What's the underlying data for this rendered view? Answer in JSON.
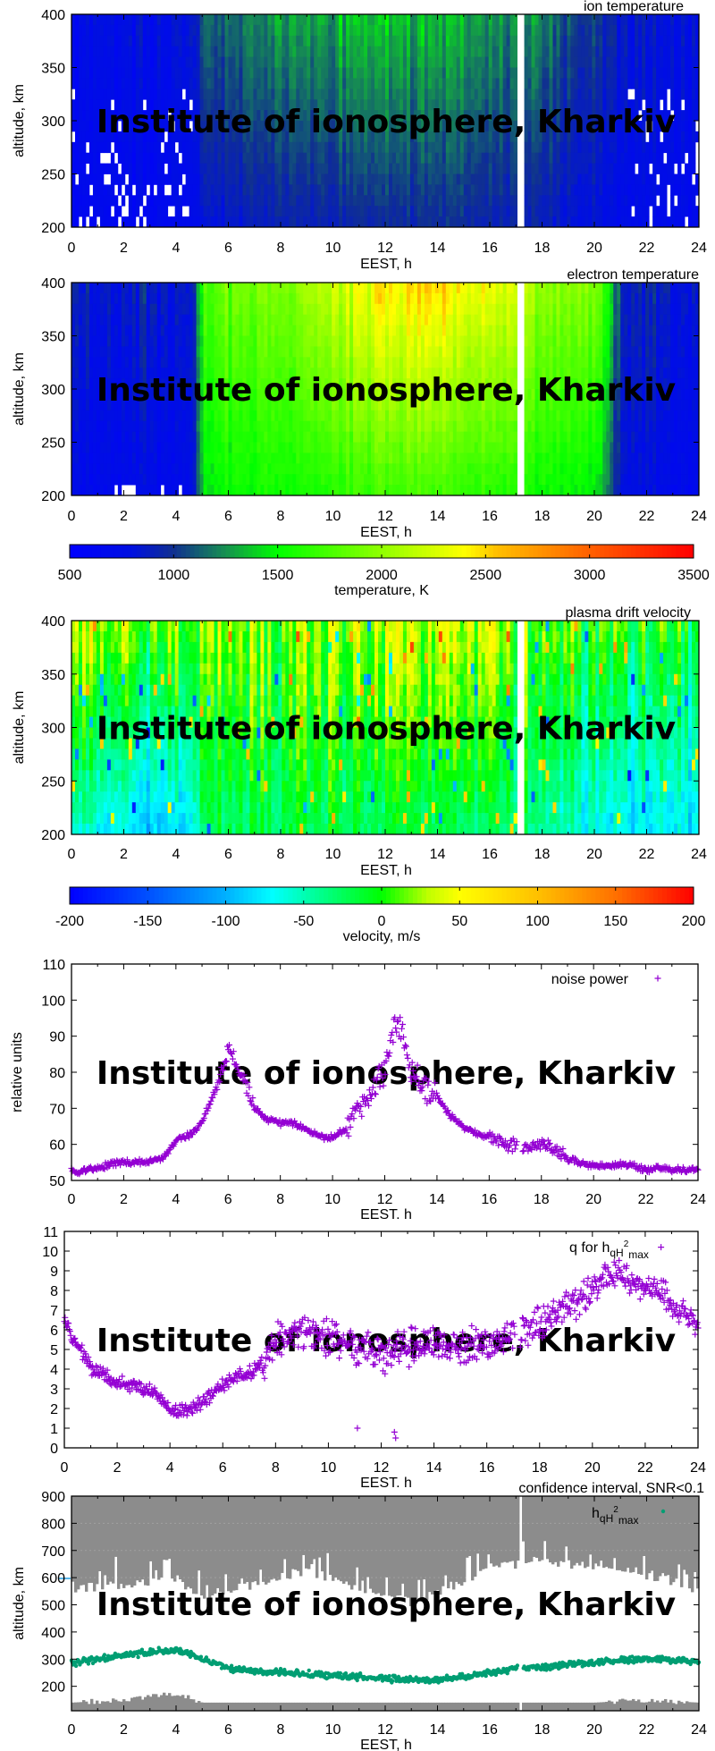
{
  "watermark": "Institute of ionosphere, Kharkiv",
  "chart_data": [
    {
      "type": "heatmap",
      "title": "ion temperature",
      "xlabel": "EEST, h",
      "ylabel": "altitude, km",
      "xlim": [
        0,
        24
      ],
      "ylim": [
        200,
        400
      ],
      "xticks": [
        "0",
        "2",
        "4",
        "6",
        "8",
        "10",
        "12",
        "14",
        "16",
        "18",
        "20",
        "22",
        "24"
      ],
      "yticks": [
        "200",
        "250",
        "300",
        "350",
        "400"
      ],
      "zlim": [
        500,
        3500
      ],
      "missing_interval_h": [
        17.08,
        17.27
      ],
      "profile": {
        "hours": [
          0,
          2,
          4,
          4.6,
          5,
          6,
          8,
          10,
          12,
          14,
          16,
          18,
          20,
          20.5,
          21,
          24
        ],
        "at_200km": [
          650,
          650,
          680,
          720,
          780,
          850,
          900,
          930,
          960,
          960,
          930,
          880,
          800,
          760,
          740,
          680
        ],
        "at_400km": [
          750,
          760,
          800,
          900,
          1050,
          1150,
          1280,
          1320,
          1400,
          1320,
          1280,
          1200,
          1000,
          950,
          880,
          780
        ]
      }
    },
    {
      "type": "heatmap",
      "title": "electron temperature",
      "xlabel": "EEST, h",
      "ylabel": "altitude, km",
      "xlim": [
        0,
        24
      ],
      "ylim": [
        200,
        400
      ],
      "xticks": [
        "0",
        "2",
        "4",
        "6",
        "8",
        "10",
        "12",
        "14",
        "16",
        "18",
        "20",
        "22",
        "24"
      ],
      "yticks": [
        "200",
        "250",
        "300",
        "350",
        "400"
      ],
      "zlim": [
        500,
        3500
      ],
      "missing_interval_h": [
        17.08,
        17.27
      ],
      "profile": {
        "hours": [
          0,
          2,
          4,
          4.6,
          5,
          6,
          8,
          10,
          12,
          14,
          16,
          18,
          20,
          20.5,
          21,
          24
        ],
        "at_200km": [
          700,
          700,
          720,
          760,
          1400,
          1500,
          1550,
          1600,
          1700,
          1700,
          1600,
          1550,
          1450,
          1200,
          800,
          700
        ],
        "at_400km": [
          850,
          850,
          880,
          950,
          1700,
          1850,
          1950,
          2150,
          2450,
          2450,
          2300,
          2050,
          1900,
          1600,
          950,
          880
        ]
      },
      "colorbar": {
        "label": "temperature, K",
        "range": [
          500,
          3500
        ],
        "ticks": [
          "500",
          "1000",
          "1500",
          "2000",
          "2500",
          "3000",
          "3500"
        ],
        "palette": [
          [
            500,
            "#0000ff"
          ],
          [
            800,
            "#0010e0"
          ],
          [
            1000,
            "#103090"
          ],
          [
            1250,
            "#169050"
          ],
          [
            1500,
            "#00ff00"
          ],
          [
            2000,
            "#90ff00"
          ],
          [
            2400,
            "#ffff00"
          ],
          [
            2550,
            "#ffc000"
          ],
          [
            3000,
            "#ff6000"
          ],
          [
            3500,
            "#ff0000"
          ]
        ]
      }
    },
    {
      "type": "heatmap",
      "title": "plasma drift velocity",
      "xlabel": "EEST, h",
      "ylabel": "altitude, km",
      "xlim": [
        0,
        24
      ],
      "ylim": [
        200,
        400
      ],
      "xticks": [
        "0",
        "2",
        "4",
        "6",
        "8",
        "10",
        "12",
        "14",
        "16",
        "18",
        "20",
        "22",
        "24"
      ],
      "yticks": [
        "200",
        "250",
        "300",
        "350",
        "400"
      ],
      "zlim": [
        -200,
        200
      ],
      "missing_interval_h": [
        17.08,
        17.27
      ],
      "profile": {
        "hours": [
          0,
          2,
          4,
          4.6,
          5,
          6,
          8,
          10,
          12,
          14,
          16,
          18,
          20,
          20.5,
          21,
          24
        ],
        "at_200km": [
          -60,
          -80,
          -90,
          -70,
          -40,
          -30,
          -20,
          -20,
          -20,
          -20,
          -30,
          -40,
          -70,
          -80,
          -80,
          -80
        ],
        "at_400km": [
          20,
          20,
          10,
          10,
          10,
          10,
          20,
          30,
          40,
          40,
          30,
          10,
          0,
          -10,
          -10,
          -10
        ]
      },
      "colorbar": {
        "label": "velocity, m/s",
        "range": [
          -200,
          200
        ],
        "ticks": [
          "-200",
          "-150",
          "-100",
          "-50",
          "0",
          "50",
          "100",
          "150",
          "200"
        ],
        "palette": [
          [
            -200,
            "#0000ff"
          ],
          [
            -150,
            "#0050ff"
          ],
          [
            -100,
            "#00b0ff"
          ],
          [
            -70,
            "#00ffff"
          ],
          [
            -40,
            "#00ff90"
          ],
          [
            0,
            "#00ff00"
          ],
          [
            30,
            "#c0ff00"
          ],
          [
            50,
            "#ffff00"
          ],
          [
            100,
            "#ffc000"
          ],
          [
            150,
            "#ff7000"
          ],
          [
            200,
            "#ff0000"
          ]
        ]
      }
    },
    {
      "type": "scatter",
      "legend": "noise power",
      "xlabel": "EEST. h",
      "ylabel": "relative units",
      "xlim": [
        0,
        24
      ],
      "ylim": [
        50,
        110
      ],
      "xticks": [
        "0",
        "2",
        "4",
        "6",
        "8",
        "10",
        "12",
        "14",
        "16",
        "18",
        "20",
        "22",
        "24"
      ],
      "yticks": [
        "50",
        "60",
        "70",
        "80",
        "90",
        "100",
        "110"
      ],
      "marker_color": "#9400d3",
      "series": [
        {
          "name": "noise power",
          "x": [
            0,
            0.5,
            1,
            1.5,
            2,
            2.5,
            3,
            3.5,
            4,
            4.5,
            5,
            5.5,
            5.75,
            6,
            6.5,
            7,
            7.5,
            8,
            8.5,
            9,
            9.5,
            10,
            10.5,
            11,
            11.5,
            12,
            12.25,
            12.5,
            12.75,
            13,
            13.5,
            14,
            14.5,
            15,
            15.5,
            16,
            16.5,
            17,
            17.5,
            18,
            18.5,
            19,
            19.5,
            20,
            20.5,
            21,
            21.5,
            22,
            22.5,
            23,
            23.5,
            24
          ],
          "y": [
            52.5,
            52.5,
            53.5,
            54.5,
            55,
            55,
            55.5,
            56,
            61,
            62.5,
            66,
            75,
            80,
            86,
            80,
            70,
            67,
            66,
            66,
            64,
            62,
            62,
            64,
            70,
            75,
            80,
            90,
            95,
            88,
            80,
            76,
            73,
            68,
            65,
            63,
            62,
            60,
            60,
            59,
            60,
            59,
            56,
            55,
            54,
            54,
            54.5,
            54,
            53,
            53.5,
            53,
            53,
            53
          ]
        }
      ]
    },
    {
      "type": "scatter",
      "legend": {
        "text": "q for h",
        "sub": "qH",
        "sup": "2",
        "sub2": "max"
      },
      "xlabel": "EEST. h",
      "xlim": [
        0,
        24
      ],
      "ylim": [
        0,
        11
      ],
      "xticks": [
        "0",
        "2",
        "4",
        "6",
        "8",
        "10",
        "12",
        "14",
        "16",
        "18",
        "20",
        "22",
        "24"
      ],
      "yticks": [
        "0",
        "1",
        "2",
        "3",
        "4",
        "5",
        "6",
        "7",
        "8",
        "9",
        "10",
        "11"
      ],
      "marker_color": "#9400d3",
      "series": [
        {
          "name": "q for hqH2max",
          "x": [
            0,
            0.25,
            0.5,
            1,
            1.5,
            2,
            2.5,
            3,
            3.5,
            4,
            4.5,
            5,
            5.5,
            6,
            6.5,
            7,
            7.5,
            8,
            8.5,
            9,
            9.5,
            10,
            10.5,
            11,
            11.5,
            12,
            12.5,
            13,
            13.5,
            14,
            14.5,
            15,
            15.5,
            16,
            16.5,
            17,
            17.5,
            18,
            18.5,
            19,
            19.5,
            20,
            20.5,
            21,
            21.5,
            22,
            22.5,
            23,
            23.5,
            24
          ],
          "y": [
            6.5,
            5.8,
            5.2,
            4,
            3.7,
            3.4,
            3.2,
            3,
            2.7,
            2,
            1.9,
            2.1,
            2.6,
            3.2,
            3.6,
            3.8,
            4.3,
            5.3,
            5.8,
            6,
            5.8,
            5.6,
            5.4,
            5.2,
            5,
            4.6,
            4.8,
            5,
            5.2,
            5.3,
            5.2,
            5.1,
            5.3,
            5.2,
            5.4,
            5.8,
            6,
            6.3,
            6.8,
            7.2,
            7.5,
            8,
            8.8,
            9,
            8.4,
            8.2,
            8.2,
            7.3,
            6.8,
            6
          ]
        }
      ]
    },
    {
      "type": "scatter",
      "title": "confidence interval, SNR<0.1",
      "legend": {
        "text": "h",
        "sub": "qH",
        "sup": "2",
        "sub2": "max"
      },
      "xlabel": "EEST, h",
      "ylabel": "altitude, km",
      "xlim": [
        0,
        24
      ],
      "ylim": [
        110,
        900
      ],
      "xticks": [
        "0",
        "2",
        "4",
        "6",
        "8",
        "10",
        "12",
        "14",
        "16",
        "18",
        "20",
        "22",
        "24"
      ],
      "yticks": [
        "200",
        "300",
        "400",
        "500",
        "600",
        "700",
        "800",
        "900"
      ],
      "point_color": "#009e73",
      "fill_color": "#8c8c8c",
      "series": [
        {
          "name": "hqH2max",
          "x": [
            0,
            1,
            2,
            3,
            3.5,
            4,
            4.5,
            5,
            5.5,
            6,
            7,
            8,
            9,
            10,
            11,
            12,
            13,
            14,
            15,
            16,
            17,
            18,
            19,
            20,
            21,
            22,
            23,
            24
          ],
          "y": [
            285,
            300,
            315,
            325,
            330,
            335,
            320,
            300,
            285,
            265,
            258,
            252,
            245,
            240,
            235,
            228,
            225,
            225,
            235,
            250,
            265,
            270,
            280,
            285,
            295,
            300,
            298,
            290
          ]
        }
      ],
      "confidence_interval": {
        "x": [
          0,
          2,
          4,
          5,
          6,
          8,
          9,
          10,
          11,
          12,
          13,
          14,
          15,
          16,
          17,
          18,
          19,
          20,
          21,
          22,
          23,
          24
        ],
        "upper_edge_km": [
          550,
          560,
          590,
          520,
          540,
          590,
          620,
          580,
          560,
          520,
          500,
          530,
          580,
          620,
          640,
          650,
          640,
          620,
          610,
          600,
          580,
          540
        ],
        "lower_edge_km": [
          140,
          150,
          175,
          140,
          140,
          140,
          140,
          140,
          140,
          140,
          140,
          140,
          140,
          140,
          140,
          140,
          140,
          140,
          145,
          150,
          145,
          140
        ]
      }
    }
  ]
}
